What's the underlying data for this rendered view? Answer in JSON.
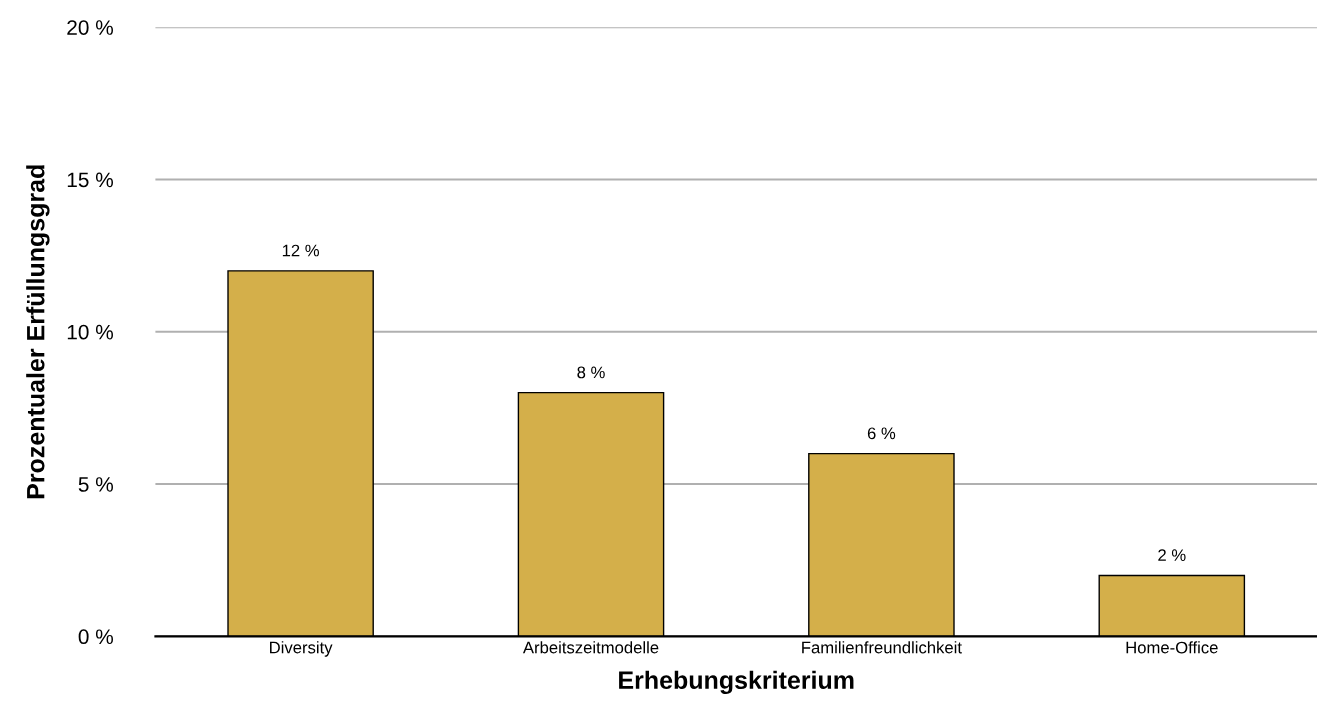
{
  "chart_data": {
    "type": "bar",
    "xlabel": "Erhebungskriterium",
    "ylabel": "Prozentualer Erfüllungsgrad",
    "categories": [
      "Diversity",
      "Arbeitszeitmodelle",
      "Familienfreundlichkeit",
      "Home-Office"
    ],
    "values": [
      12,
      8,
      6,
      2
    ],
    "color": "#d4af4a",
    "value_labels": [
      "12 %",
      "8 %",
      "6 %",
      "2 %"
    ],
    "ylim": [
      0,
      20
    ],
    "yticks": [
      {
        "value": 0,
        "label": "0 %"
      },
      {
        "value": 5,
        "label": "5 %"
      },
      {
        "value": 10,
        "label": "10 %"
      },
      {
        "value": 15,
        "label": "15 %"
      },
      {
        "value": 20,
        "label": "20 %"
      }
    ],
    "grid": "y",
    "legend": false
  }
}
